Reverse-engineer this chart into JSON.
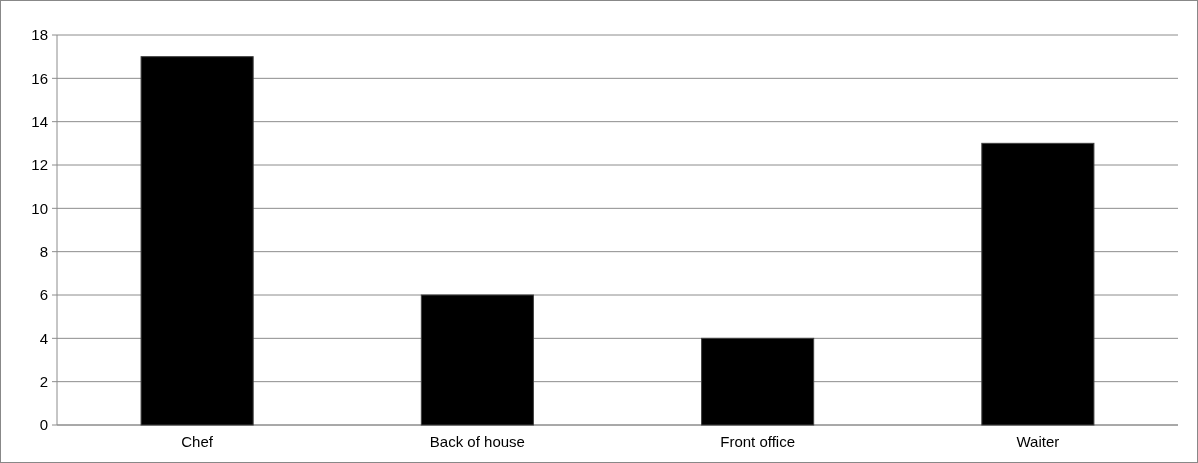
{
  "chart_data": {
    "type": "bar",
    "categories": [
      "Chef",
      "Back of house",
      "Front office",
      "Waiter"
    ],
    "values": [
      17,
      6,
      4,
      13
    ],
    "color": "#000000",
    "ylim": [
      0,
      18
    ],
    "yticks": [
      0,
      2,
      4,
      6,
      8,
      10,
      12,
      14,
      16,
      18
    ],
    "grid": "y"
  }
}
